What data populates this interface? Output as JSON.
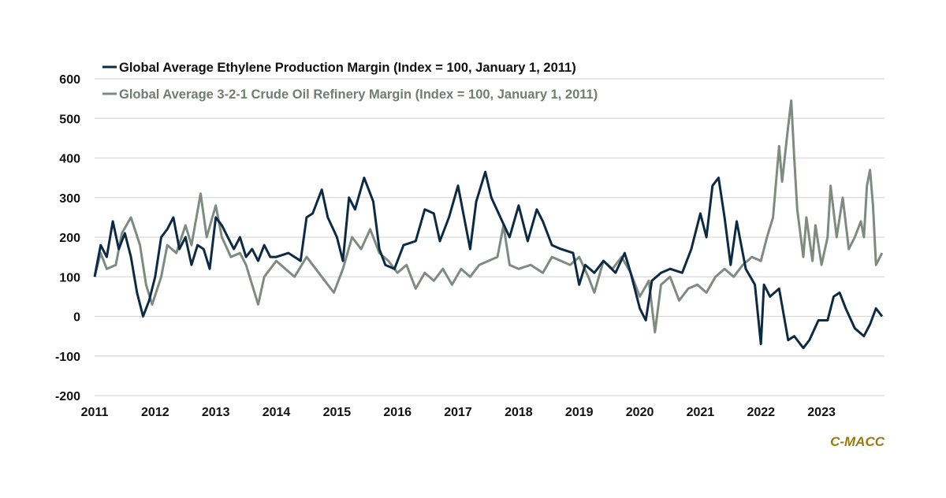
{
  "chart_data": {
    "type": "line",
    "title": "",
    "xlabel": "",
    "ylabel": "",
    "xlim": [
      2011,
      2024.04
    ],
    "ylim": [
      -200,
      600
    ],
    "grid": true,
    "legend_position": "top-left",
    "x_ticks": [
      "2011",
      "2012",
      "2013",
      "2014",
      "2015",
      "2016",
      "2017",
      "2018",
      "2019",
      "2020",
      "2021",
      "2022",
      "2023"
    ],
    "y_ticks": [
      -200,
      -100,
      0,
      100,
      200,
      300,
      400,
      500,
      600
    ],
    "source_label": "C-MACC",
    "series": [
      {
        "name": "Global Average Ethylene Production Margin (Index = 100, January 1, 2011)",
        "color": "#0c2a44",
        "points": [
          [
            2011.0,
            100
          ],
          [
            2011.1,
            180
          ],
          [
            2011.2,
            150
          ],
          [
            2011.3,
            240
          ],
          [
            2011.4,
            170
          ],
          [
            2011.5,
            210
          ],
          [
            2011.6,
            150
          ],
          [
            2011.7,
            60
          ],
          [
            2011.8,
            0
          ],
          [
            2011.9,
            40
          ],
          [
            2012.0,
            100
          ],
          [
            2012.1,
            200
          ],
          [
            2012.2,
            220
          ],
          [
            2012.3,
            250
          ],
          [
            2012.4,
            170
          ],
          [
            2012.5,
            200
          ],
          [
            2012.6,
            130
          ],
          [
            2012.7,
            180
          ],
          [
            2012.8,
            170
          ],
          [
            2012.9,
            120
          ],
          [
            2013.0,
            250
          ],
          [
            2013.1,
            230
          ],
          [
            2013.2,
            200
          ],
          [
            2013.3,
            170
          ],
          [
            2013.4,
            200
          ],
          [
            2013.5,
            150
          ],
          [
            2013.6,
            170
          ],
          [
            2013.7,
            140
          ],
          [
            2013.8,
            180
          ],
          [
            2013.9,
            150
          ],
          [
            2014.0,
            150
          ],
          [
            2014.2,
            160
          ],
          [
            2014.4,
            140
          ],
          [
            2014.5,
            250
          ],
          [
            2014.6,
            260
          ],
          [
            2014.75,
            320
          ],
          [
            2014.85,
            250
          ],
          [
            2015.0,
            200
          ],
          [
            2015.1,
            140
          ],
          [
            2015.2,
            300
          ],
          [
            2015.3,
            270
          ],
          [
            2015.45,
            350
          ],
          [
            2015.6,
            290
          ],
          [
            2015.7,
            170
          ],
          [
            2015.8,
            130
          ],
          [
            2015.95,
            120
          ],
          [
            2016.1,
            180
          ],
          [
            2016.3,
            190
          ],
          [
            2016.45,
            270
          ],
          [
            2016.6,
            260
          ],
          [
            2016.7,
            190
          ],
          [
            2016.85,
            250
          ],
          [
            2017.0,
            330
          ],
          [
            2017.1,
            250
          ],
          [
            2017.2,
            170
          ],
          [
            2017.3,
            290
          ],
          [
            2017.45,
            365
          ],
          [
            2017.55,
            300
          ],
          [
            2017.7,
            250
          ],
          [
            2017.85,
            200
          ],
          [
            2018.0,
            280
          ],
          [
            2018.15,
            190
          ],
          [
            2018.3,
            270
          ],
          [
            2018.4,
            240
          ],
          [
            2018.55,
            180
          ],
          [
            2018.7,
            170
          ],
          [
            2018.9,
            160
          ],
          [
            2019.0,
            80
          ],
          [
            2019.1,
            130
          ],
          [
            2019.25,
            110
          ],
          [
            2019.4,
            140
          ],
          [
            2019.6,
            110
          ],
          [
            2019.75,
            160
          ],
          [
            2019.85,
            110
          ],
          [
            2020.0,
            20
          ],
          [
            2020.1,
            -10
          ],
          [
            2020.2,
            90
          ],
          [
            2020.35,
            110
          ],
          [
            2020.5,
            120
          ],
          [
            2020.7,
            110
          ],
          [
            2020.85,
            170
          ],
          [
            2021.0,
            260
          ],
          [
            2021.1,
            200
          ],
          [
            2021.2,
            330
          ],
          [
            2021.3,
            350
          ],
          [
            2021.4,
            250
          ],
          [
            2021.5,
            130
          ],
          [
            2021.6,
            240
          ],
          [
            2021.75,
            120
          ],
          [
            2021.9,
            80
          ],
          [
            2022.0,
            -70
          ],
          [
            2022.05,
            80
          ],
          [
            2022.15,
            50
          ],
          [
            2022.3,
            70
          ],
          [
            2022.45,
            -60
          ],
          [
            2022.55,
            -50
          ],
          [
            2022.7,
            -80
          ],
          [
            2022.8,
            -60
          ],
          [
            2022.95,
            -10
          ],
          [
            2023.1,
            -10
          ],
          [
            2023.2,
            50
          ],
          [
            2023.3,
            60
          ],
          [
            2023.4,
            20
          ],
          [
            2023.55,
            -30
          ],
          [
            2023.7,
            -50
          ],
          [
            2023.8,
            -20
          ],
          [
            2023.9,
            20
          ],
          [
            2024.0,
            0
          ]
        ]
      },
      {
        "name": "Global Average 3-2-1 Crude Oil Refinery Margin (Index = 100, January 1, 2011)",
        "color": "#7d8b80",
        "points": [
          [
            2011.0,
            100
          ],
          [
            2011.1,
            160
          ],
          [
            2011.2,
            120
          ],
          [
            2011.35,
            130
          ],
          [
            2011.45,
            210
          ],
          [
            2011.6,
            250
          ],
          [
            2011.75,
            180
          ],
          [
            2011.85,
            80
          ],
          [
            2011.95,
            30
          ],
          [
            2012.1,
            100
          ],
          [
            2012.2,
            180
          ],
          [
            2012.35,
            160
          ],
          [
            2012.5,
            230
          ],
          [
            2012.6,
            180
          ],
          [
            2012.75,
            310
          ],
          [
            2012.85,
            200
          ],
          [
            2013.0,
            280
          ],
          [
            2013.1,
            200
          ],
          [
            2013.25,
            150
          ],
          [
            2013.4,
            160
          ],
          [
            2013.5,
            130
          ],
          [
            2013.6,
            80
          ],
          [
            2013.7,
            30
          ],
          [
            2013.8,
            100
          ],
          [
            2014.0,
            140
          ],
          [
            2014.15,
            120
          ],
          [
            2014.3,
            100
          ],
          [
            2014.5,
            150
          ],
          [
            2014.65,
            120
          ],
          [
            2014.8,
            90
          ],
          [
            2014.95,
            60
          ],
          [
            2015.1,
            120
          ],
          [
            2015.25,
            200
          ],
          [
            2015.4,
            170
          ],
          [
            2015.55,
            220
          ],
          [
            2015.7,
            160
          ],
          [
            2015.85,
            140
          ],
          [
            2016.0,
            110
          ],
          [
            2016.15,
            130
          ],
          [
            2016.3,
            70
          ],
          [
            2016.45,
            110
          ],
          [
            2016.6,
            90
          ],
          [
            2016.75,
            120
          ],
          [
            2016.9,
            80
          ],
          [
            2017.05,
            120
          ],
          [
            2017.2,
            100
          ],
          [
            2017.35,
            130
          ],
          [
            2017.5,
            140
          ],
          [
            2017.65,
            150
          ],
          [
            2017.75,
            230
          ],
          [
            2017.85,
            130
          ],
          [
            2018.0,
            120
          ],
          [
            2018.2,
            130
          ],
          [
            2018.4,
            110
          ],
          [
            2018.55,
            150
          ],
          [
            2018.7,
            140
          ],
          [
            2018.85,
            130
          ],
          [
            2019.0,
            150
          ],
          [
            2019.15,
            100
          ],
          [
            2019.25,
            60
          ],
          [
            2019.4,
            140
          ],
          [
            2019.55,
            120
          ],
          [
            2019.7,
            150
          ],
          [
            2019.85,
            110
          ],
          [
            2020.0,
            50
          ],
          [
            2020.15,
            90
          ],
          [
            2020.25,
            -40
          ],
          [
            2020.35,
            80
          ],
          [
            2020.5,
            100
          ],
          [
            2020.65,
            40
          ],
          [
            2020.8,
            70
          ],
          [
            2020.95,
            80
          ],
          [
            2021.1,
            60
          ],
          [
            2021.25,
            100
          ],
          [
            2021.4,
            120
          ],
          [
            2021.55,
            100
          ],
          [
            2021.7,
            130
          ],
          [
            2021.85,
            150
          ],
          [
            2022.0,
            140
          ],
          [
            2022.1,
            200
          ],
          [
            2022.2,
            250
          ],
          [
            2022.3,
            430
          ],
          [
            2022.35,
            340
          ],
          [
            2022.45,
            480
          ],
          [
            2022.5,
            545
          ],
          [
            2022.55,
            400
          ],
          [
            2022.6,
            270
          ],
          [
            2022.7,
            150
          ],
          [
            2022.75,
            250
          ],
          [
            2022.85,
            140
          ],
          [
            2022.9,
            230
          ],
          [
            2023.0,
            130
          ],
          [
            2023.1,
            200
          ],
          [
            2023.15,
            330
          ],
          [
            2023.25,
            200
          ],
          [
            2023.35,
            300
          ],
          [
            2023.45,
            170
          ],
          [
            2023.55,
            200
          ],
          [
            2023.65,
            240
          ],
          [
            2023.7,
            200
          ],
          [
            2023.75,
            330
          ],
          [
            2023.8,
            370
          ],
          [
            2023.85,
            280
          ],
          [
            2023.9,
            130
          ],
          [
            2024.0,
            160
          ]
        ]
      }
    ]
  }
}
